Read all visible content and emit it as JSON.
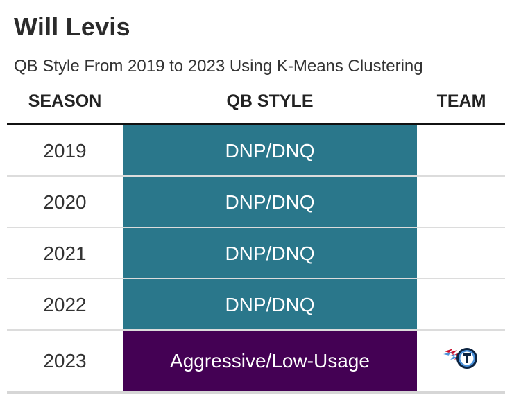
{
  "title": "Will Levis",
  "subtitle": "QB Style From 2019 to 2023 Using K-Means Clustering",
  "columns": {
    "season": "SEASON",
    "style": "QB STYLE",
    "team": "TEAM"
  },
  "colors": {
    "dnp": "#2a778b",
    "aggressive": "#440154",
    "rule": "#111111",
    "divider": "#dcdcdc"
  },
  "chart_data": {
    "type": "table",
    "title": "Will Levis",
    "subtitle": "QB Style From 2019 to 2023 Using K-Means Clustering",
    "columns": [
      "SEASON",
      "QB STYLE",
      "TEAM"
    ],
    "rows": [
      {
        "season": "2019",
        "style": "DNP/DNQ",
        "team_icon": ""
      },
      {
        "season": "2020",
        "style": "DNP/DNQ",
        "team_icon": ""
      },
      {
        "season": "2021",
        "style": "DNP/DNQ",
        "team_icon": ""
      },
      {
        "season": "2022",
        "style": "DNP/DNQ",
        "team_icon": ""
      },
      {
        "season": "2023",
        "style": "Aggressive/Low-Usage",
        "team_icon": "titans-logo-icon"
      }
    ]
  }
}
